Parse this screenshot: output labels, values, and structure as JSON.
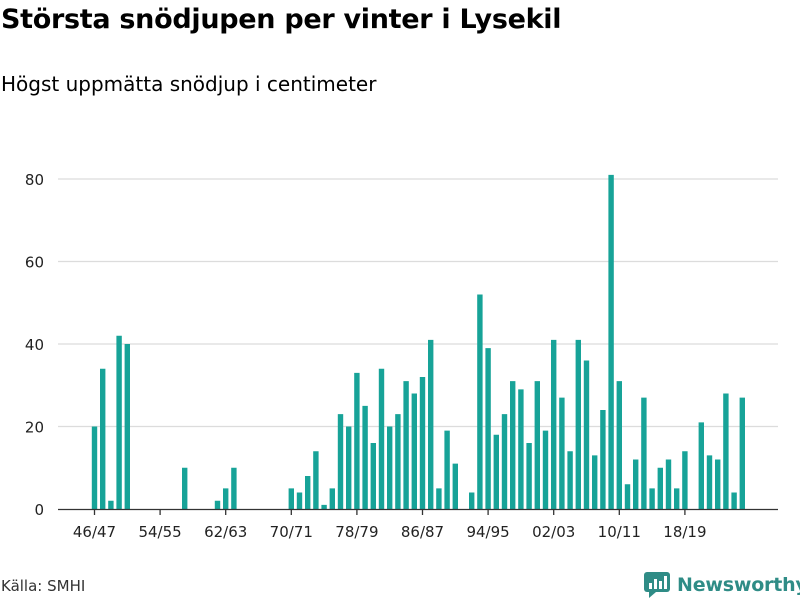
{
  "header": {
    "title": "Största snödjupen per vinter i Lysekil",
    "subtitle": "Högst uppmätta snödjup i centimeter"
  },
  "footer": {
    "source": "Källa: SMHI",
    "brand": "Newsworthy"
  },
  "colors": {
    "bar": "#17a398",
    "grid": "#dcdcdc",
    "axis": "#333333",
    "brand": "#2f8c86"
  },
  "icons": {
    "brand": "newsworthy-logo-icon"
  },
  "chart_data": {
    "type": "bar",
    "title": "Största snödjupen per vinter i Lysekil",
    "subtitle": "Högst uppmätta snödjup i centimeter",
    "xlabel": "",
    "ylabel": "",
    "ylim": [
      0,
      85
    ],
    "yticks": [
      0,
      20,
      40,
      60,
      80
    ],
    "grid": true,
    "xtick_labels": [
      "46/47",
      "54/55",
      "62/63",
      "70/71",
      "78/79",
      "86/87",
      "94/95",
      "02/03",
      "10/11",
      "18/19"
    ],
    "categories": [
      "46/47",
      "47/48",
      "48/49",
      "49/50",
      "50/51",
      "51/52",
      "52/53",
      "53/54",
      "54/55",
      "55/56",
      "56/57",
      "57/58",
      "58/59",
      "59/60",
      "60/61",
      "61/62",
      "62/63",
      "63/64",
      "64/65",
      "65/66",
      "66/67",
      "67/68",
      "68/69",
      "69/70",
      "70/71",
      "71/72",
      "72/73",
      "73/74",
      "74/75",
      "75/76",
      "76/77",
      "77/78",
      "78/79",
      "79/80",
      "80/81",
      "81/82",
      "82/83",
      "83/84",
      "84/85",
      "85/86",
      "86/87",
      "87/88",
      "88/89",
      "89/90",
      "90/91",
      "91/92",
      "92/93",
      "93/94",
      "94/95",
      "95/96",
      "96/97",
      "97/98",
      "98/99",
      "99/00",
      "00/01",
      "01/02",
      "02/03",
      "03/04",
      "04/05",
      "05/06",
      "06/07",
      "07/08",
      "08/09",
      "09/10",
      "10/11",
      "11/12",
      "12/13",
      "13/14",
      "14/15",
      "15/16",
      "16/17",
      "17/18",
      "18/19",
      "19/20",
      "20/21",
      "21/22",
      "22/23",
      "23/24",
      "24/25",
      "25/26",
      "26/27"
    ],
    "values": [
      20,
      34,
      2,
      42,
      40,
      null,
      null,
      null,
      null,
      null,
      null,
      10,
      null,
      null,
      null,
      2,
      5,
      10,
      null,
      null,
      null,
      null,
      null,
      null,
      5,
      4,
      8,
      14,
      1,
      5,
      23,
      20,
      33,
      25,
      16,
      34,
      20,
      23,
      31,
      28,
      32,
      41,
      5,
      19,
      11,
      null,
      4,
      52,
      39,
      18,
      23,
      31,
      29,
      16,
      31,
      19,
      41,
      27,
      14,
      41,
      36,
      13,
      24,
      81,
      31,
      6,
      12,
      27,
      5,
      10,
      12,
      5,
      14,
      null,
      21,
      13,
      12,
      28,
      4,
      27,
      null
    ]
  }
}
